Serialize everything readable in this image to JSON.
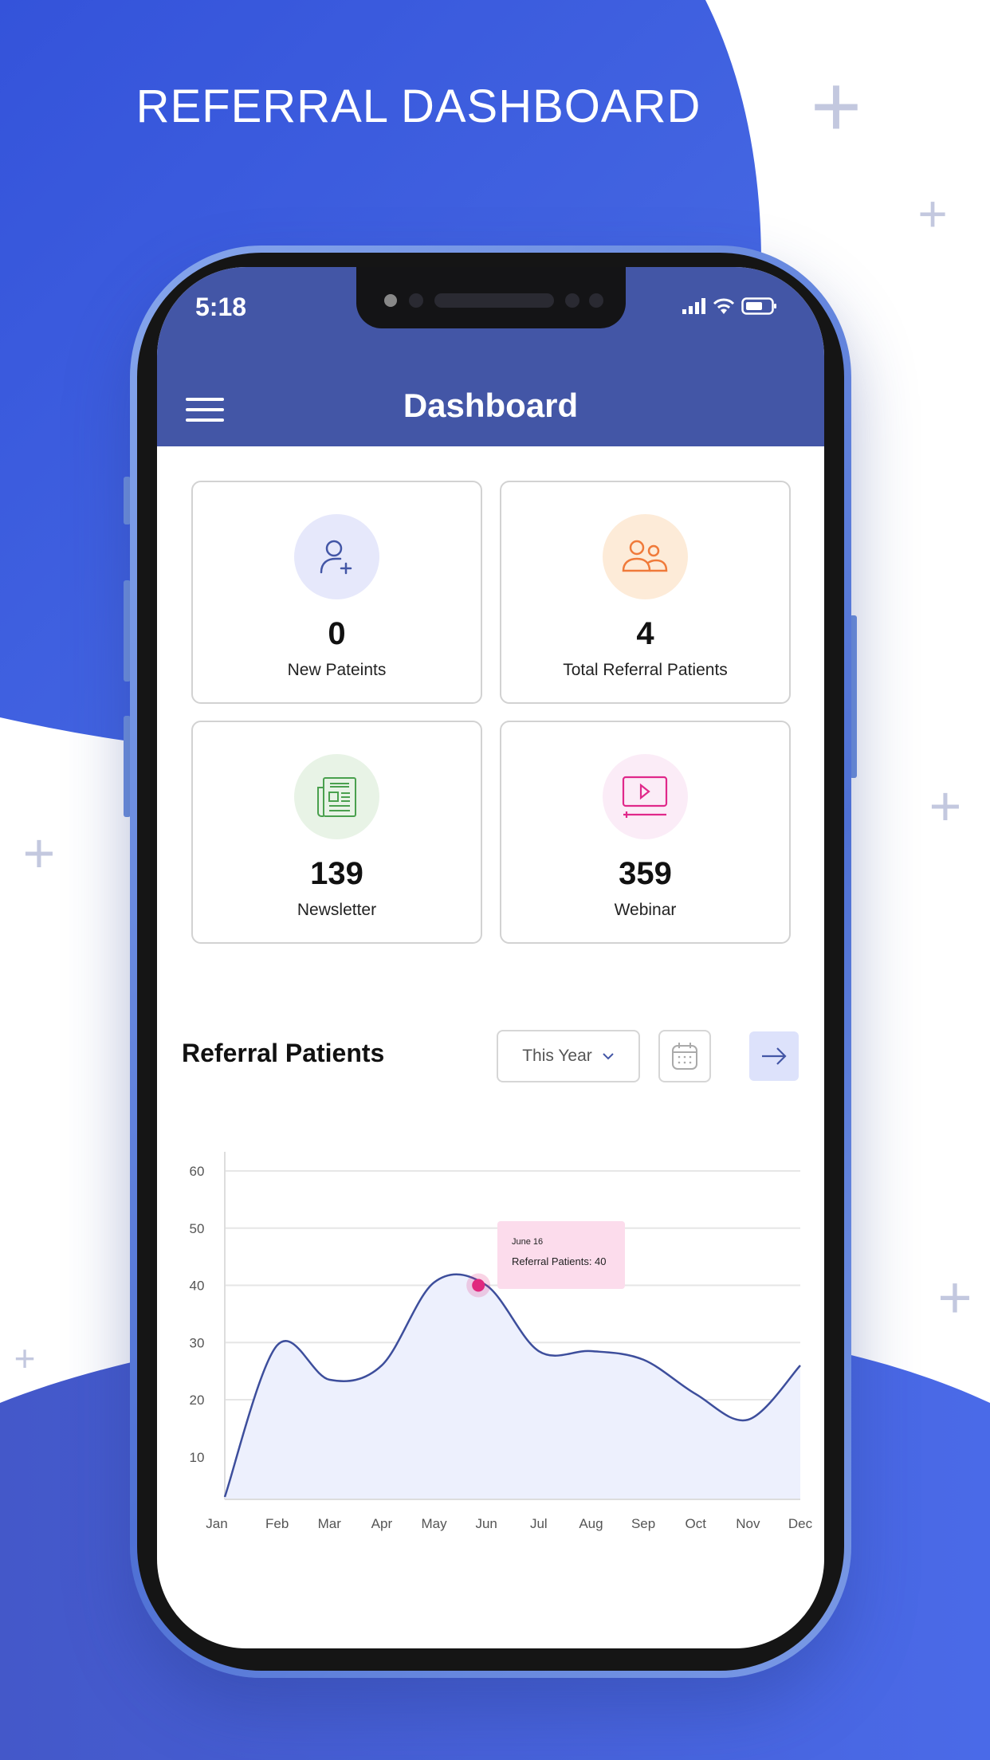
{
  "promo": {
    "title": "REFERRAL DASHBOARD"
  },
  "colors": {
    "brand_blue": "#3f5bdc",
    "header": "#4356a6",
    "line": "#3d4e9c",
    "fill": "#edf0fd",
    "highlight": "#e0287e",
    "tooltip_bg": "#fcdcec"
  },
  "status_bar": {
    "time": "5:18",
    "icons": [
      "signal-icon",
      "wifi-icon",
      "battery-icon"
    ]
  },
  "header": {
    "title": "Dashboard",
    "menu_icon": "hamburger-icon"
  },
  "stats": [
    {
      "value": "0",
      "label": "New Pateints",
      "icon": "user-plus-icon",
      "color": "#4356a6",
      "bg": "#e6e8fb"
    },
    {
      "value": "4",
      "label": "Total Referral Patients",
      "icon": "users-icon",
      "color": "#f07a3a",
      "bg": "#fdebd8"
    },
    {
      "value": "139",
      "label": "Newsletter",
      "icon": "newspaper-icon",
      "color": "#4aa04e",
      "bg": "#e8f3e6"
    },
    {
      "value": "359",
      "label": "Webinar",
      "icon": "video-play-icon",
      "color": "#e0288a",
      "bg": "#fbecf7"
    }
  ],
  "section": {
    "title": "Referral Patients",
    "period": "This Year",
    "calendar_icon": "calendar-icon",
    "next_icon": "arrow-right-icon"
  },
  "chart_data": {
    "type": "area",
    "categories": [
      "Jan",
      "Feb",
      "Mar",
      "Apr",
      "May",
      "Jun",
      "Jul",
      "Aug",
      "Sep",
      "Oct",
      "Nov",
      "Dec"
    ],
    "values": [
      3,
      29.5,
      23.5,
      26,
      40.5,
      40,
      28.5,
      28.5,
      27,
      21,
      16.5,
      26
    ],
    "yticks": [
      10,
      20,
      30,
      40,
      50,
      60
    ],
    "ylim": [
      0,
      60
    ],
    "grid": true,
    "highlight": {
      "category": "Jun",
      "value": 40
    },
    "tooltip": {
      "date": "June 16",
      "text": "Referral Patients: 40"
    }
  }
}
